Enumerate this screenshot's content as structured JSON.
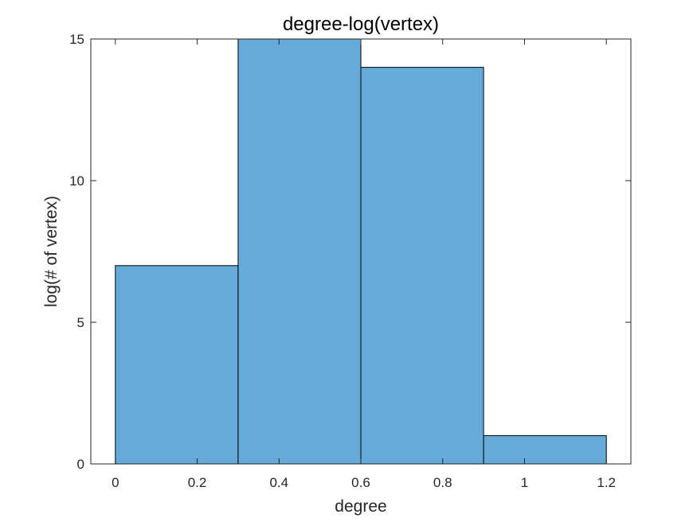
{
  "chart_data": {
    "type": "bar",
    "title": "degree-log(vertex)",
    "xlabel": "degree",
    "ylabel": "log(# of vertex)",
    "bins": [
      {
        "start": 0.0,
        "end": 0.3,
        "value": 7
      },
      {
        "start": 0.3,
        "end": 0.6,
        "value": 15
      },
      {
        "start": 0.6,
        "end": 0.9,
        "value": 14
      },
      {
        "start": 0.9,
        "end": 1.2,
        "value": 1
      }
    ],
    "xlim": [
      -0.06,
      1.26
    ],
    "ylim": [
      0,
      15
    ],
    "x_ticks": [
      0,
      0.2,
      0.4,
      0.6,
      0.8,
      1,
      1.2
    ],
    "x_tick_labels": [
      "0",
      "0.2",
      "0.4",
      "0.6",
      "0.8",
      "1",
      "1.2"
    ],
    "y_ticks": [
      0,
      5,
      10,
      15
    ],
    "y_tick_labels": [
      "0",
      "5",
      "10",
      "15"
    ],
    "grid": false,
    "box": true,
    "colors": {
      "bar_fill": "#65aad8",
      "bar_edge": "#000000",
      "axes": "#262626",
      "title": "#000000"
    }
  }
}
